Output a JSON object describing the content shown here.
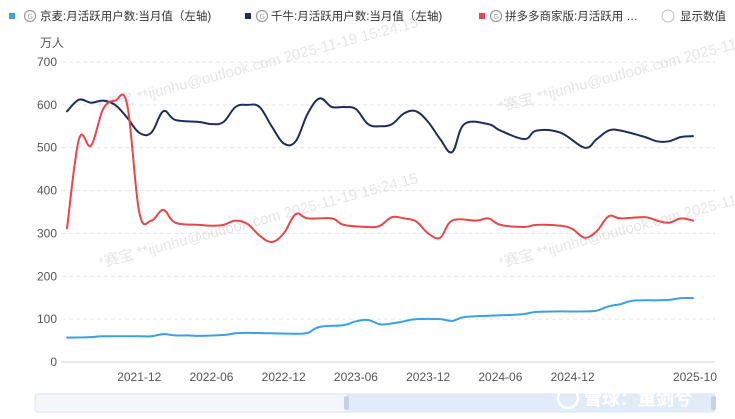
{
  "legend": {
    "items": [
      {
        "label": "京麦:月活跃用户数:当月值（左轴)",
        "color": "#3aa0e8",
        "icon": "chart-source-icon"
      },
      {
        "label": "千牛:月活跃用户数:当月值（左轴)",
        "color": "#1f2d5c",
        "icon": "chart-source-icon"
      },
      {
        "label": "拼多多商家版:月活跃用 …",
        "color": "#e8464b",
        "icon": "chart-source-icon"
      }
    ],
    "toggle_label": "显示数值"
  },
  "watermarks": [
    "*赛宝 **ijunhu@outlook.com 2025-11-19 15:24:15"
  ],
  "brand": "雪球：重剑兮",
  "chart_data": {
    "type": "line",
    "ylabel": "万人",
    "ylim": [
      0,
      700
    ],
    "yticks": [
      "0",
      "100",
      "200",
      "300",
      "400",
      "500",
      "600",
      "700"
    ],
    "xlim": [
      "2021-06",
      "2025-10"
    ],
    "xticks": [
      "2021-12",
      "2022-06",
      "2022-12",
      "2023-06",
      "2023-12",
      "2024-06",
      "2024-12",
      "2025-10"
    ],
    "grid": "horizontal-dashed",
    "legend_position": "top",
    "series": [
      {
        "name": "京麦:月活跃用户数:当月值（左轴)",
        "color": "#3aa0e8",
        "points": [
          [
            "2021-06",
            57
          ],
          [
            "2021-08",
            58
          ],
          [
            "2021-09",
            60
          ],
          [
            "2021-12",
            60
          ],
          [
            "2022-01",
            60
          ],
          [
            "2022-02",
            65
          ],
          [
            "2022-03",
            62
          ],
          [
            "2022-04",
            62
          ],
          [
            "2022-05",
            61
          ],
          [
            "2022-07",
            63
          ],
          [
            "2022-08",
            67
          ],
          [
            "2022-09",
            68
          ],
          [
            "2022-11",
            67
          ],
          [
            "2023-01",
            66
          ],
          [
            "2023-02",
            68
          ],
          [
            "2023-03",
            82
          ],
          [
            "2023-05",
            86
          ],
          [
            "2023-06",
            95
          ],
          [
            "2023-07",
            98
          ],
          [
            "2023-08",
            88
          ],
          [
            "2023-09",
            90
          ],
          [
            "2023-10",
            95
          ],
          [
            "2023-11",
            100
          ],
          [
            "2024-01",
            100
          ],
          [
            "2024-02",
            96
          ],
          [
            "2024-03",
            105
          ],
          [
            "2024-05",
            108
          ],
          [
            "2024-07",
            110
          ],
          [
            "2024-08",
            112
          ],
          [
            "2024-09",
            117
          ],
          [
            "2024-11",
            118
          ],
          [
            "2025-01",
            118
          ],
          [
            "2025-02",
            120
          ],
          [
            "2025-03",
            130
          ],
          [
            "2025-04",
            135
          ],
          [
            "2025-05",
            143
          ],
          [
            "2025-07",
            144
          ],
          [
            "2025-08",
            145
          ],
          [
            "2025-09",
            149
          ],
          [
            "2025-10",
            149
          ]
        ]
      },
      {
        "name": "千牛:月活跃用户数:当月值（左轴)",
        "color": "#1f2d5c",
        "points": [
          [
            "2021-06",
            585
          ],
          [
            "2021-07",
            612
          ],
          [
            "2021-08",
            605
          ],
          [
            "2021-09",
            610
          ],
          [
            "2021-10",
            600
          ],
          [
            "2021-11",
            570
          ],
          [
            "2021-12",
            535
          ],
          [
            "2022-01",
            535
          ],
          [
            "2022-02",
            585
          ],
          [
            "2022-03",
            565
          ],
          [
            "2022-05",
            560
          ],
          [
            "2022-06",
            555
          ],
          [
            "2022-07",
            560
          ],
          [
            "2022-08",
            595
          ],
          [
            "2022-09",
            600
          ],
          [
            "2022-10",
            595
          ],
          [
            "2022-11",
            550
          ],
          [
            "2022-12",
            510
          ],
          [
            "2023-01",
            515
          ],
          [
            "2023-02",
            580
          ],
          [
            "2023-03",
            615
          ],
          [
            "2023-04",
            595
          ],
          [
            "2023-05",
            595
          ],
          [
            "2023-06",
            590
          ],
          [
            "2023-07",
            555
          ],
          [
            "2023-08",
            550
          ],
          [
            "2023-09",
            555
          ],
          [
            "2023-10",
            580
          ],
          [
            "2023-11",
            585
          ],
          [
            "2023-12",
            560
          ],
          [
            "2024-01",
            520
          ],
          [
            "2024-02",
            490
          ],
          [
            "2024-03",
            555
          ],
          [
            "2024-05",
            555
          ],
          [
            "2024-06",
            540
          ],
          [
            "2024-08",
            520
          ],
          [
            "2024-09",
            540
          ],
          [
            "2024-11",
            535
          ],
          [
            "2025-01",
            500
          ],
          [
            "2025-02",
            520
          ],
          [
            "2025-03",
            540
          ],
          [
            "2025-04",
            540
          ],
          [
            "2025-06",
            525
          ],
          [
            "2025-07",
            515
          ],
          [
            "2025-08",
            515
          ],
          [
            "2025-09",
            525
          ],
          [
            "2025-10",
            527
          ]
        ]
      },
      {
        "name": "拼多多商家版:月活跃用 …",
        "color": "#e8464b",
        "points": [
          [
            "2021-06",
            312
          ],
          [
            "2021-07",
            520
          ],
          [
            "2021-08",
            505
          ],
          [
            "2021-09",
            590
          ],
          [
            "2021-10",
            610
          ],
          [
            "2021-11",
            600
          ],
          [
            "2021-12",
            350
          ],
          [
            "2022-01",
            330
          ],
          [
            "2022-02",
            355
          ],
          [
            "2022-03",
            325
          ],
          [
            "2022-05",
            320
          ],
          [
            "2022-06",
            318
          ],
          [
            "2022-07",
            320
          ],
          [
            "2022-08",
            330
          ],
          [
            "2022-09",
            322
          ],
          [
            "2022-10",
            295
          ],
          [
            "2022-11",
            280
          ],
          [
            "2022-12",
            300
          ],
          [
            "2023-01",
            345
          ],
          [
            "2023-02",
            335
          ],
          [
            "2023-04",
            335
          ],
          [
            "2023-05",
            320
          ],
          [
            "2023-07",
            315
          ],
          [
            "2023-08",
            318
          ],
          [
            "2023-09",
            338
          ],
          [
            "2023-10",
            335
          ],
          [
            "2023-11",
            328
          ],
          [
            "2023-12",
            300
          ],
          [
            "2024-01",
            290
          ],
          [
            "2024-02",
            330
          ],
          [
            "2024-04",
            330
          ],
          [
            "2024-05",
            335
          ],
          [
            "2024-06",
            320
          ],
          [
            "2024-08",
            315
          ],
          [
            "2024-09",
            320
          ],
          [
            "2024-11",
            318
          ],
          [
            "2024-12",
            310
          ],
          [
            "2025-01",
            290
          ],
          [
            "2025-02",
            305
          ],
          [
            "2025-03",
            340
          ],
          [
            "2025-04",
            335
          ],
          [
            "2025-06",
            338
          ],
          [
            "2025-07",
            330
          ],
          [
            "2025-08",
            325
          ],
          [
            "2025-09",
            335
          ],
          [
            "2025-10",
            330
          ]
        ]
      }
    ]
  }
}
